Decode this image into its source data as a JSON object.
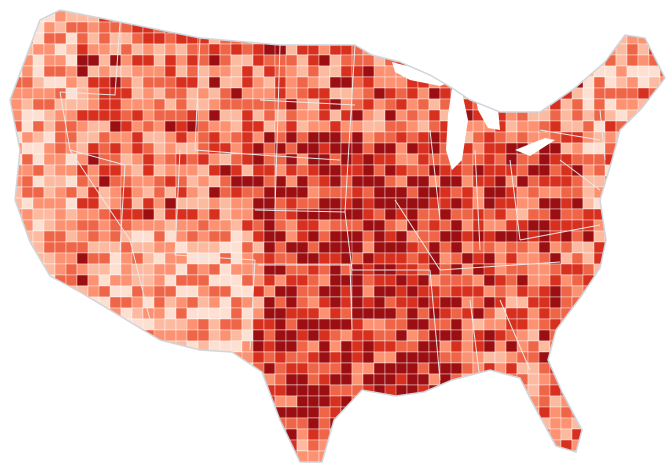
{
  "map": {
    "region": "contiguous-united-states",
    "unit": "county",
    "color_scale": [
      "#fee0d2",
      "#fcbba1",
      "#fc9272",
      "#ef6548",
      "#d7301f",
      "#9b0f12"
    ],
    "border_color": "#ffffff",
    "state_border_color": "#e9e9e9",
    "outline_color": "#cfd6dc"
  }
}
